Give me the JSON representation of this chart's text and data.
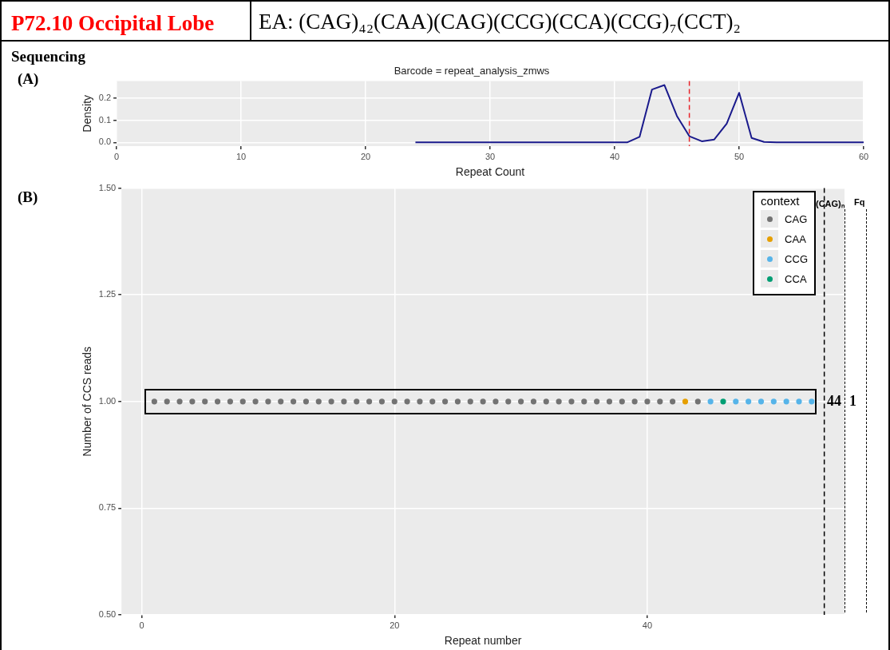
{
  "chart_data": [
    {
      "type": "line",
      "title": "Barcode = repeat_analysis_zmws",
      "xlabel": "Repeat Count",
      "ylabel": "Density",
      "annotations": [
        "P72.10 Occipital Lobe",
        "EA: (CAG)₄₂(CAA)(CAG)(CCG)(CCA)(CCG)₇(CCT)₂",
        "Sequencing",
        "(A)"
      ],
      "x": [
        24,
        25,
        26,
        27,
        28,
        29,
        30,
        31,
        32,
        33,
        34,
        35,
        36,
        37,
        38,
        39,
        40,
        41,
        42,
        43,
        44,
        45,
        46,
        47,
        48,
        49,
        50,
        51,
        52,
        53,
        54,
        55,
        56,
        57,
        58,
        59,
        60
      ],
      "series": [
        {
          "color": "#1a1a8c",
          "values": [
            0,
            0,
            0,
            0,
            0,
            0,
            0,
            0,
            0,
            0,
            0,
            0,
            0,
            0,
            0,
            0,
            0,
            0,
            0.025,
            0.24,
            0.26,
            0.12,
            0.028,
            0.005,
            0.013,
            0.085,
            0.225,
            0.02,
            0.002,
            0,
            0,
            0,
            0,
            0,
            0,
            0,
            0
          ]
        }
      ],
      "xlim": [
        0,
        60
      ],
      "xticks": [
        0,
        10,
        20,
        30,
        40,
        50,
        60
      ],
      "ylim": [
        -0.017,
        0.278
      ],
      "yticks": [
        {
          "value": 0,
          "label": "0.0"
        },
        {
          "value": 0.1,
          "label": "0.1"
        },
        {
          "value": 0.2,
          "label": "0.2"
        }
      ],
      "ref_lines": [
        {
          "axis": "x",
          "value": 46,
          "color": "#e8242a",
          "line_style": "dashed"
        }
      ],
      "grid": true,
      "legend": false,
      "marker": "none",
      "line_style": "solid"
    },
    {
      "type": "scatter",
      "xlabel": "Repeat number",
      "ylabel": "Number of CCS reads",
      "legend_title": "context",
      "annotations": [
        "(B)",
        "(CAG)ₙ",
        "Fq",
        "44",
        "1"
      ],
      "series": [
        {
          "name": "CAG",
          "color": "#737373",
          "x": [
            1,
            2,
            3,
            4,
            5,
            6,
            7,
            8,
            9,
            10,
            11,
            12,
            13,
            14,
            15,
            16,
            17,
            18,
            19,
            20,
            21,
            22,
            23,
            24,
            25,
            26,
            27,
            28,
            29,
            30,
            31,
            32,
            33,
            34,
            35,
            36,
            37,
            38,
            39,
            40,
            41,
            42,
            44
          ],
          "values": [
            1,
            1,
            1,
            1,
            1,
            1,
            1,
            1,
            1,
            1,
            1,
            1,
            1,
            1,
            1,
            1,
            1,
            1,
            1,
            1,
            1,
            1,
            1,
            1,
            1,
            1,
            1,
            1,
            1,
            1,
            1,
            1,
            1,
            1,
            1,
            1,
            1,
            1,
            1,
            1,
            1,
            1,
            1
          ]
        },
        {
          "name": "CAA",
          "color": "#e69f00",
          "x": [
            43
          ],
          "values": [
            1
          ]
        },
        {
          "name": "CCG",
          "color": "#56b4e9",
          "x": [
            45,
            47,
            48,
            49,
            50,
            51,
            52,
            53
          ],
          "values": [
            1,
            1,
            1,
            1,
            1,
            1,
            1,
            1
          ]
        },
        {
          "name": "CCA",
          "color": "#009e73",
          "x": [
            46
          ],
          "values": [
            1
          ]
        }
      ],
      "xlim": [
        -1.6,
        55.6
      ],
      "xticks": [
        0,
        20,
        40
      ],
      "ylim": [
        0.5,
        1.5
      ],
      "yticks": [
        {
          "value": 0.5,
          "label": "0.50"
        },
        {
          "value": 0.75,
          "label": "0.75"
        },
        {
          "value": 1,
          "label": "1.00"
        },
        {
          "value": 1.25,
          "label": "1.25"
        },
        {
          "value": 1.5,
          "label": "1.50"
        }
      ],
      "ref_lines": [
        {
          "axis": "x",
          "value": 54,
          "color": "#000000",
          "line_style": "dashed"
        }
      ],
      "grid": true,
      "legend": "top right",
      "marker": "circle"
    }
  ]
}
